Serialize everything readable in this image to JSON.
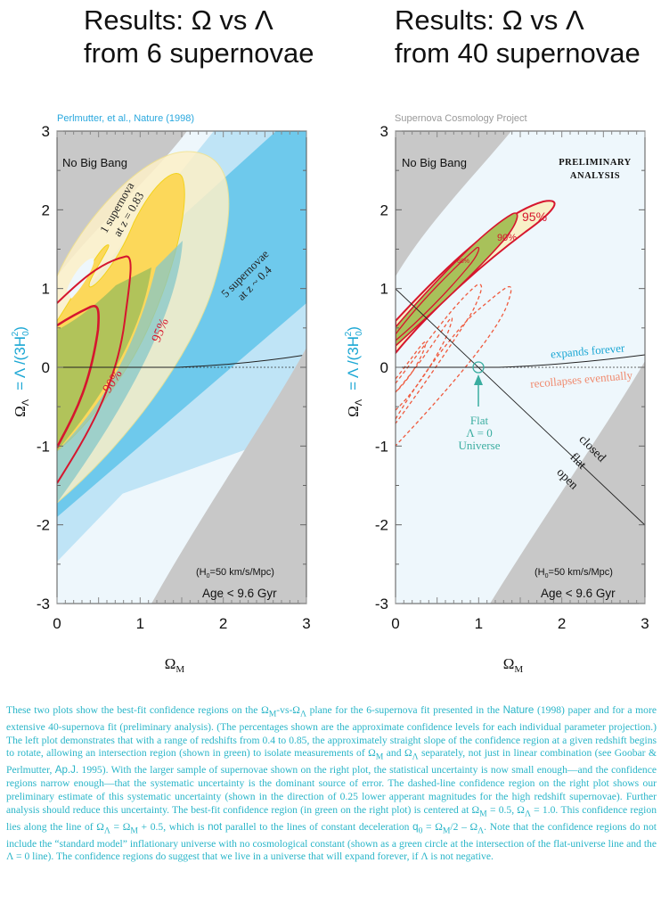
{
  "titles": {
    "left": [
      "Results: Ω vs Λ",
      "from 6 supernovae"
    ],
    "right": [
      "Results: Ω vs Λ",
      "from 40 supernovae"
    ]
  },
  "subtitles": {
    "left": "Perlmutter, et al., Nature (1998)",
    "right": "Supernova Cosmology Project"
  },
  "colors": {
    "no_big_bang": "#c8c8c8",
    "background": "#eef7fc",
    "blue_light": "#bfe4f6",
    "blue_dark": "#6ec9ec",
    "yellow_light": "#fdf0c8",
    "yellow_dark": "#fcd85a",
    "green": "#a8c15a",
    "red": "#d6162e",
    "dashed_red": "#ef5a3e",
    "cyan_text": "#1ba7d4",
    "teal": "#3aada0"
  },
  "chart_data": [
    {
      "type": "contour",
      "title": "Results: Ω vs Λ from 6 supernovae",
      "source": "Perlmutter, et al., Nature (1998)",
      "xlabel": "Ω_M",
      "ylabel": "Ω_Λ = Λ/(3H_0^2)",
      "xlim": [
        0,
        3
      ],
      "ylim": [
        -3,
        3
      ],
      "xticks": [
        "0",
        "1",
        "2",
        "3"
      ],
      "yticks": [
        "-3",
        "-2",
        "-1",
        "0",
        "1",
        "2",
        "3"
      ],
      "regions": [
        {
          "name": "No Big Bang",
          "label": "No Big Bang",
          "position": "top-left"
        },
        {
          "name": "Age < 9.6 Gyr",
          "label": "Age < 9.6 Gyr",
          "sublabel": "(H0=50 km/s/Mpc)",
          "position": "bottom-right"
        }
      ],
      "bands": [
        {
          "name": "5 supernovae at z ~ 0.4",
          "label_lines": [
            "5 supernovae",
            "at z ~ 0.4"
          ],
          "slope_approx": 1.0,
          "outer_intercept_at_x0": [
            -2.45,
            3.2
          ],
          "inner_intercept_at_x0": [
            -1.9,
            2.5
          ]
        },
        {
          "name": "1 supernova at z = 0.83",
          "label_lines": [
            "1 supernova",
            "at z = 0.83"
          ],
          "inner_span_y_at_x0": [
            -0.8,
            0.85
          ],
          "outer_span_y_at_x0": [
            -1.4,
            1.05
          ]
        }
      ],
      "contours": [
        {
          "level": "90%",
          "y_at_x0": [
            -1.12,
            0.22
          ],
          "max_x": 0.95,
          "max_y": 0.8
        },
        {
          "level": "95%",
          "y_at_x0": [
            -1.5,
            0.42
          ],
          "max_x": 1.55,
          "max_y": 1.45
        }
      ],
      "lines": [
        {
          "name": "expands/recollapses boundary",
          "points": [
            [
              0,
              0
            ],
            [
              1.4,
              0.0
            ],
            [
              3,
              0.18
            ]
          ]
        },
        {
          "name": "Lambda = 0",
          "style": "dotted",
          "y": 0
        }
      ]
    },
    {
      "type": "contour",
      "title": "Results: Ω vs Λ from 40 supernovae",
      "source": "Supernova Cosmology Project",
      "annotation": "PRELIMINARY ANALYSIS",
      "xlabel": "Ω_M",
      "ylabel": "Ω_Λ = Λ/(3H_0^2)",
      "xlim": [
        0,
        3
      ],
      "ylim": [
        -3,
        3
      ],
      "xticks": [
        "0",
        "1",
        "2",
        "3"
      ],
      "yticks": [
        "-3",
        "-2",
        "-1",
        "0",
        "1",
        "2",
        "3"
      ],
      "regions": [
        {
          "name": "No Big Bang",
          "label": "No Big Bang",
          "position": "top-left"
        },
        {
          "name": "Age < 9.6 Gyr",
          "label": "Age < 9.6 Gyr",
          "sublabel": "(H0=50 km/s/Mpc)",
          "position": "bottom-right"
        }
      ],
      "contours": [
        {
          "level": "68%",
          "center": [
            0.5,
            1.0
          ]
        },
        {
          "level": "90%"
        },
        {
          "level": "95%",
          "tip": [
            1.85,
            2.15
          ]
        }
      ],
      "systematic_contours": {
        "style": "dashed",
        "tip": [
          1.45,
          1.2
        ],
        "levels": 3
      },
      "lines": [
        {
          "name": "flat universe",
          "points": [
            [
              0,
              1
            ],
            [
              3,
              -2
            ]
          ],
          "labels": [
            "closed",
            "flat",
            "open"
          ]
        },
        {
          "name": "expands forever / recollapses eventually",
          "points": [
            [
              0,
              0
            ],
            [
              1.2,
              0
            ],
            [
              3,
              0.18
            ]
          ],
          "labels": [
            "expands forever",
            "recollapses eventually"
          ]
        }
      ],
      "markers": [
        {
          "name": "Flat Λ = 0 Universe",
          "x": 1,
          "y": 0,
          "label_lines": [
            "Flat",
            "Λ = 0",
            "Universe"
          ]
        }
      ]
    }
  ],
  "plot_text": {
    "no_big_bang": "No Big Bang",
    "age": "Age < 9.6 Gyr",
    "h0_prefix": "(H",
    "h0_sub": "0",
    "h0_suffix": "=50 km/s/Mpc)",
    "one_sn": [
      "1 supernova",
      "at z = 0.83"
    ],
    "five_sn": [
      "5 supernovae",
      "at z ~ 0.4"
    ],
    "pct90": "90%",
    "pct95": "95%",
    "pct68": "68%",
    "preliminary": [
      "PRELIMINARY",
      "ANALYSIS"
    ],
    "expands": "expands forever",
    "recollapses": "recollapses eventually",
    "closed": "closed",
    "flat": "flat",
    "open": "open",
    "flat_universe": [
      "Flat",
      "Λ = 0",
      "Universe"
    ],
    "xlabel_main": "Ω",
    "xlabel_sub": "M",
    "ylabel_main": "Ω",
    "ylabel_sub": "Λ",
    "ylabel_rest": "= Λ /(3H",
    "ylabel_h_sub": "0",
    "ylabel_sup": "2",
    "ylabel_close": ")"
  },
  "caption": {
    "p1": "These two plots show the best-fit confidence regions on the  Ω",
    "p1_sub_M": "M",
    "p2": "-vs-Ω",
    "p2_sub_L": "Λ",
    "p3": " plane for the 6-supernova fit presented in the ",
    "nature": "Nature",
    "p4": " (1998) paper and for a more extensive 40-supernova fit (preliminary analysis).  (The percentages shown are the approximate confidence levels for each individual parameter projection.) The left plot demonstrates that with a range of redshifts from 0.4 to 0.85, the approximately straight slope of the confidence region at a given redshift begins to rotate, allowing an intersection region (shown in green) to isolate measurements of Ω",
    "p5": " and Ω",
    "p6": " separately, not just in linear combination (see Goobar & Perlmutter, ",
    "apj": "Ap.J.",
    "p7": " 1995).  With the larger sample of supernovae shown on the right plot, the statistical uncertainty is now small enough—and the confidence regions narrow enough—that the systematic uncertainty is the dominant source of error.  The dashed-line confidence region on the right plot shows our preliminary estimate of this systematic uncertainty (shown in the direction of 0.25 lower apperant magnitudes for the high redshift supernovae).  Further analysis should reduce this uncertainty.  The best-fit confidence region (in green on the right plot) is centered at Ω",
    "p8": " = 0.5, Ω",
    "p9": " = 1.0.    This confidence region lies along the line of   Ω",
    "p10": " =  Ω",
    "p11": " + 0.5, which is ",
    "not": "not",
    "p12": " parallel to the lines of constant deceleration ",
    "q": "q",
    "q_sub": "0",
    "p13": " = Ω",
    "p14": "/2 – Ω",
    "p15": ". Note that the confidence regions do not include the “standard model” inflationary universe with no cosmological constant (shown as a green circle at the intersection of the flat-universe line and the Λ = 0 line).  The confidence regions do suggest that we live in a universe that will expand forever, if Λ is not negative."
  }
}
